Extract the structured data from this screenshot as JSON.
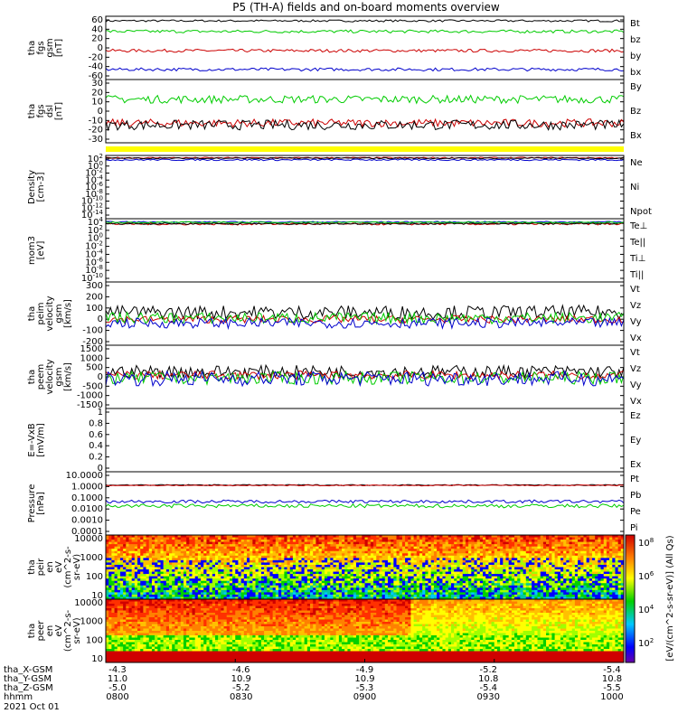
{
  "title": "P5 (TH-A) fields and on-board moments overview",
  "chart_data": [
    {
      "id": "fgs_gsm",
      "type": "line",
      "ylabel": [
        "tha",
        "fgs",
        "gsm",
        "[nT]"
      ],
      "yticks": [
        60,
        40,
        20,
        0,
        -20,
        -40,
        -60
      ],
      "ylim": [
        -60,
        65
      ],
      "series": [
        {
          "name": "Bt",
          "color": "#000000",
          "level": 56,
          "amp": 2
        },
        {
          "name": "bz",
          "color": "#cc0000",
          "level": -3,
          "amp": 3
        },
        {
          "name": "by",
          "color": "#00cc00",
          "level": 35,
          "amp": 3
        },
        {
          "name": "bx",
          "color": "#0000cc",
          "level": -40,
          "amp": 3
        }
      ]
    },
    {
      "id": "fgs_dsl",
      "type": "line",
      "ylabel": [
        "tha",
        "fgs",
        "dsl",
        "[nT]"
      ],
      "yticks": [
        30,
        20,
        10,
        0,
        -10,
        -20,
        -30
      ],
      "ylim": [
        -32,
        32
      ],
      "series": [
        {
          "name": "By",
          "color": "#00cc00",
          "level": 12,
          "amp": 4
        },
        {
          "name": "Bz",
          "color": "#cc0000",
          "level": -12,
          "amp": 4
        },
        {
          "name": "Bx",
          "color": "#000000",
          "level": -14,
          "amp": 5
        }
      ]
    },
    {
      "id": "density",
      "type": "line",
      "log": true,
      "ylabel": [
        "Density",
        "[cm-3]"
      ],
      "yticks": [
        "10^2",
        "10^0",
        "10^-2",
        "10^-4",
        "10^-6",
        "10^-8",
        "10^-10",
        "10^-12",
        "10^-14"
      ],
      "ylim": [
        -14,
        2
      ],
      "series": [
        {
          "name": "Ne",
          "color": "#cc0000",
          "level": 1.4,
          "amp": 0.15
        },
        {
          "name": "Ni",
          "color": "#000000",
          "level": 1.3,
          "amp": 0.15
        },
        {
          "name": "Npot",
          "color": "#0000cc",
          "level": 0.9,
          "amp": 0.2
        }
      ]
    },
    {
      "id": "temperature",
      "type": "line",
      "log": true,
      "ylabel": [
        "mom3",
        "[eV]"
      ],
      "yticks": [
        "10^4",
        "10^2",
        "10^0",
        "10^-2",
        "10^-4",
        "10^-6",
        "10^-8",
        "10^-10"
      ],
      "ylim": [
        -11,
        4.5
      ],
      "series": [
        {
          "name": "Te⊥",
          "color": "#cc0000",
          "level": 3.2,
          "amp": 0.25
        },
        {
          "name": "Te||",
          "color": "#000000",
          "level": 3.3,
          "amp": 0.2
        },
        {
          "name": "Ti⊥",
          "color": "#0000cc",
          "level": 3.7,
          "amp": 0.15
        },
        {
          "name": "Ti||",
          "color": "#00cc00",
          "level": 3.6,
          "amp": 0.15
        }
      ]
    },
    {
      "id": "peim_velocity",
      "type": "line",
      "ylabel": [
        "tha",
        "peim",
        "velocity",
        "gsm",
        "[km/s]"
      ],
      "yticks": [
        300,
        200,
        100,
        0,
        -100,
        -200
      ],
      "ylim": [
        -200,
        300
      ],
      "series": [
        {
          "name": "Vt",
          "color": "#000000",
          "level": 60,
          "amp": 55
        },
        {
          "name": "Vz",
          "color": "#cc0000",
          "level": 5,
          "amp": 30
        },
        {
          "name": "Vy",
          "color": "#00cc00",
          "level": 15,
          "amp": 45
        },
        {
          "name": "Vx",
          "color": "#0000cc",
          "level": -25,
          "amp": 40
        }
      ]
    },
    {
      "id": "peem_velocity",
      "type": "line",
      "ylabel": [
        "tha",
        "peem",
        "velocity",
        "gsm",
        "[km/s]"
      ],
      "yticks": [
        1500,
        1000,
        500,
        0,
        -500,
        -1000,
        -1500
      ],
      "ylim": [
        -1500,
        1500
      ],
      "series": [
        {
          "name": "Vt",
          "color": "#000000",
          "level": 250,
          "amp": 300
        },
        {
          "name": "Vz",
          "color": "#cc0000",
          "level": 80,
          "amp": 200
        },
        {
          "name": "Vy",
          "color": "#00cc00",
          "level": -50,
          "amp": 300
        },
        {
          "name": "Vx",
          "color": "#0000cc",
          "level": -80,
          "amp": 350
        }
      ]
    },
    {
      "id": "efield",
      "type": "line",
      "ylabel": [
        "E=-VxB",
        "[mV/m]"
      ],
      "yticks": [
        1.0,
        0.8,
        0.6,
        0.4,
        0.2,
        0.0
      ],
      "ylim": [
        0,
        1
      ],
      "series": [
        {
          "name": "Ez",
          "color": "#cc0000"
        },
        {
          "name": "Ey",
          "color": "#00cc00"
        },
        {
          "name": "Ex",
          "color": "#0000cc"
        }
      ]
    },
    {
      "id": "pressure",
      "type": "line",
      "log": true,
      "ylabel": [
        "Pressure",
        "[nPa]"
      ],
      "yticks": [
        "10.0000",
        "1.0000",
        "0.1000",
        "0.0100",
        "0.0010",
        "0.0001"
      ],
      "ylim": [
        -4,
        1
      ],
      "series": [
        {
          "name": "Pt",
          "color": "#000000",
          "level": -0.05,
          "amp": 0.04
        },
        {
          "name": "Pb",
          "color": "#cc0000",
          "level": -0.08,
          "amp": 0.04
        },
        {
          "name": "Pe",
          "color": "#00cc00",
          "level": -1.7,
          "amp": 0.15
        },
        {
          "name": "Pi",
          "color": "#0000cc",
          "level": -1.35,
          "amp": 0.12
        }
      ]
    },
    {
      "id": "peir_spec",
      "type": "heatmap",
      "ylabel": [
        "tha",
        "peir",
        "en",
        "eV",
        "(cm^2-s-",
        "sr-eV)"
      ],
      "yticks": [
        10000,
        1000,
        100,
        10
      ]
    },
    {
      "id": "peer_spec",
      "type": "heatmap",
      "ylabel": [
        "tha",
        "peer",
        "en",
        "eV",
        "(cm^2-s-",
        "sr-eV)"
      ],
      "yticks": [
        10000,
        1000,
        100,
        10
      ]
    }
  ],
  "colorbar": {
    "ticks": [
      "10^8",
      "10^6",
      "10^4",
      "10^2"
    ],
    "label": "[eV/(cm^2-s-sr-eV)] (All Qs)"
  },
  "time_axis": {
    "ticks": [
      "0800",
      "0830",
      "0900",
      "0930",
      "1000"
    ],
    "rows": [
      {
        "name": "tha_X-GSM",
        "values": [
          "-4.3",
          "-4.6",
          "-4.9",
          "-5.2",
          "-5.4"
        ]
      },
      {
        "name": "tha_Y-GSM",
        "values": [
          "11.0",
          "10.9",
          "10.9",
          "10.8",
          "10.8"
        ]
      },
      {
        "name": "tha_Z-GSM",
        "values": [
          "-5.0",
          "-5.2",
          "-5.3",
          "-5.4",
          "-5.5"
        ]
      },
      {
        "name": "hhmm",
        "values": [
          "0800",
          "0830",
          "0900",
          "0930",
          "1000"
        ]
      }
    ],
    "date": "2021 Oct 01"
  }
}
